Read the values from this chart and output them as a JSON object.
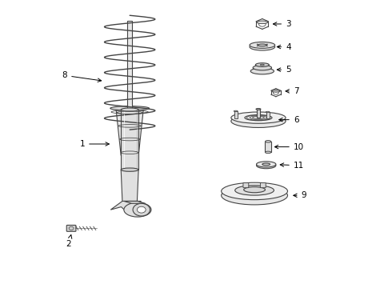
{
  "background_color": "#ffffff",
  "line_color": "#444444",
  "label_color": "#000000",
  "fig_width": 4.9,
  "fig_height": 3.6,
  "dpi": 100,
  "xlim": [
    0,
    10
  ],
  "ylim": [
    0,
    10
  ]
}
